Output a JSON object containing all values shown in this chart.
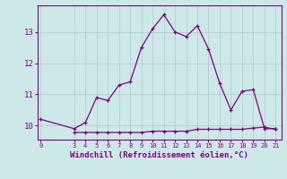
{
  "xlabel": "Windchill (Refroidissement éolien,°C)",
  "x_main": [
    0,
    3,
    4,
    5,
    6,
    7,
    8,
    9,
    10,
    11,
    12,
    13,
    14,
    15,
    16,
    17,
    18,
    19,
    20,
    21
  ],
  "y_main": [
    10.2,
    9.9,
    10.1,
    10.9,
    10.8,
    11.3,
    11.4,
    12.5,
    13.1,
    13.55,
    13.0,
    12.85,
    13.2,
    12.45,
    11.35,
    10.5,
    11.1,
    11.15,
    9.9,
    9.9
  ],
  "x_flat": [
    3,
    4,
    5,
    6,
    7,
    8,
    9,
    10,
    11,
    12,
    13,
    14,
    15,
    16,
    17,
    18,
    19,
    20,
    21
  ],
  "y_flat": [
    9.78,
    9.78,
    9.78,
    9.78,
    9.78,
    9.78,
    9.78,
    9.82,
    9.82,
    9.82,
    9.82,
    9.88,
    9.88,
    9.88,
    9.88,
    9.88,
    9.92,
    9.95,
    9.88
  ],
  "line_color": "#800080",
  "bg_color": "#cce9e8",
  "grid_color": "#b0c8c8",
  "ylim": [
    9.55,
    13.85
  ],
  "yticks": [
    10,
    11,
    12,
    13
  ],
  "xticks": [
    0,
    3,
    4,
    5,
    6,
    7,
    8,
    9,
    10,
    11,
    12,
    13,
    14,
    15,
    16,
    17,
    18,
    19,
    20,
    21
  ],
  "xlim": [
    -0.3,
    21.5
  ]
}
